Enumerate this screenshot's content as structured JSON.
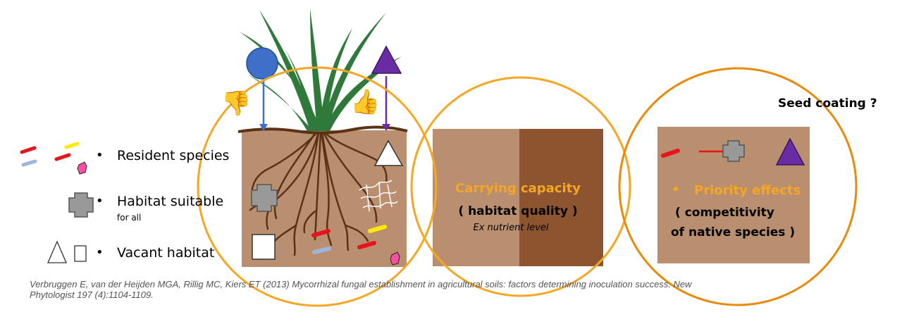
{
  "legend": {
    "resident_species": "Resident species",
    "habitat_suitable": "Habitat suitable",
    "for_all": "for all",
    "vacant_habitat": "Vacant habitat",
    "bullet": "•"
  },
  "center": {
    "carrying_capacity": "Carrying capacity",
    "habitat_quality": "( habitat quality )",
    "ex_nutrient": "Ex nutrient level"
  },
  "right": {
    "seed_coating": "Seed coating ?",
    "bullet": "•",
    "priority_effects": "Priority effects",
    "competitivity_line1": "( competitivity",
    "competitivity_line2": "of native species )"
  },
  "citation": {
    "line1": "Verbruggen E, van der Heijden MGA, Rillig MC, Kiers ET (2013) Mycorrhizal fungal establishment in agricultural soils: factors determining inoculation success. New",
    "line2": "Phytologist 197 (4):1104-1109."
  },
  "icons": {
    "thumbs_down": "👎",
    "thumbs_up": "👍"
  },
  "colors": {
    "soil": "#b98f6f",
    "soil_dark": "#8c5530",
    "circle_orange": "#f5a623",
    "circle_dark_orange": "#e88a0c",
    "blue_circle": "#3e70c9",
    "purple": "#6a2ca3",
    "red_bar": "#e8141c",
    "yellow_bar": "#ffea00",
    "blue_bar": "#9db6e0",
    "pink": "#ff4fa0",
    "root": "#5a3316",
    "grass": "#2f7a3a"
  }
}
